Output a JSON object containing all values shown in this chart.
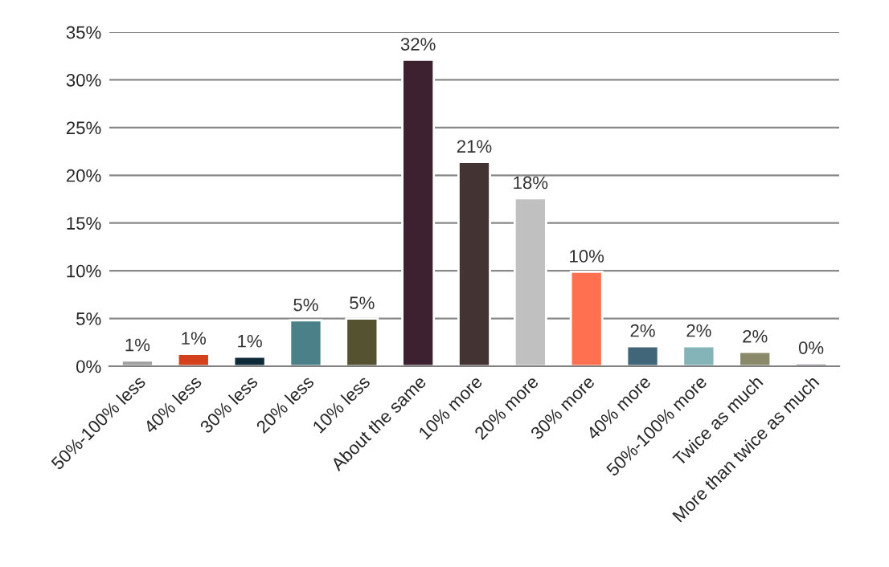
{
  "chart_data": {
    "type": "bar",
    "categories": [
      "50%-100% less",
      "40% less",
      "30% less",
      "20% less",
      "10% less",
      "About the same",
      "10% more",
      "20% more",
      "30% more",
      "40% more",
      "50%-100% more",
      "Twice as much",
      "More than twice as much"
    ],
    "values": [
      0.6,
      1.3,
      1.0,
      4.8,
      5.0,
      32.1,
      21.4,
      17.6,
      9.9,
      2.1,
      2.1,
      1.5,
      0.3
    ],
    "value_labels": [
      "1%",
      "1%",
      "1%",
      "5%",
      "5%",
      "32%",
      "21%",
      "18%",
      "10%",
      "2%",
      "2%",
      "2%",
      "0%"
    ],
    "colors": [
      "#a0a0a0",
      "#d4401c",
      "#0f2b3a",
      "#4a8088",
      "#545230",
      "#3d2130",
      "#433333",
      "#c0c0c0",
      "#ff7050",
      "#41667a",
      "#84b4b8",
      "#8a8a6a",
      "#7a6a80"
    ],
    "ylim": [
      0,
      35
    ],
    "yticks": [
      {
        "value": 0,
        "label": "0%"
      },
      {
        "value": 5,
        "label": "5%"
      },
      {
        "value": 10,
        "label": "10%"
      },
      {
        "value": 15,
        "label": "15%"
      },
      {
        "value": 20,
        "label": "20%"
      },
      {
        "value": 25,
        "label": "25%"
      },
      {
        "value": 30,
        "label": "30%"
      },
      {
        "value": 35,
        "label": "35%"
      }
    ],
    "grid": "y",
    "legend": false
  }
}
